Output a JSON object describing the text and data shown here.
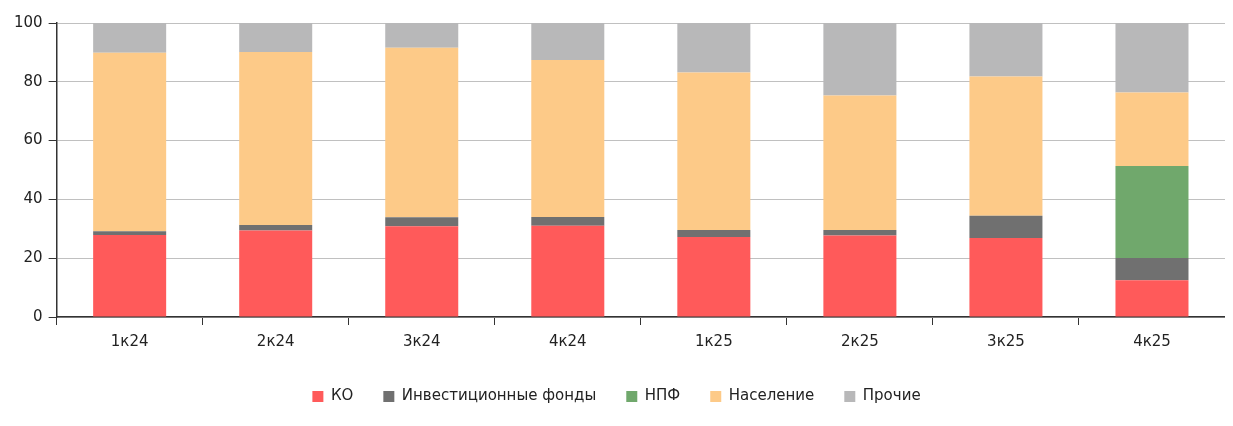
{
  "chart_data": {
    "type": "bar",
    "stacked": true,
    "categories": [
      "1к24",
      "2к24",
      "3к24",
      "4к24",
      "1к25",
      "2к25",
      "3к25",
      "4к25"
    ],
    "series": [
      {
        "name": "КО",
        "color": "#ff5a5a",
        "values": [
          27.9,
          29.4,
          30.9,
          31.0,
          27.2,
          27.7,
          26.9,
          12.5
        ]
      },
      {
        "name": "Инвестиционные фонды",
        "color": "#707070",
        "values": [
          1.3,
          1.9,
          3.0,
          3.0,
          2.4,
          1.9,
          7.5,
          7.6
        ]
      },
      {
        "name": "НПФ",
        "color": "#70a86c",
        "values": [
          null,
          null,
          null,
          null,
          null,
          null,
          null,
          31.3
        ]
      },
      {
        "name": "Население",
        "color": "#fdca88",
        "values": [
          60.7,
          58.8,
          57.7,
          53.4,
          53.6,
          45.7,
          47.4,
          25.0
        ]
      },
      {
        "name": "Прочие",
        "color": "#b8b8b9",
        "values": [
          10.1,
          9.9,
          8.4,
          12.6,
          16.8,
          24.7,
          18.2,
          23.6
        ]
      }
    ],
    "ylim": [
      0,
      100
    ],
    "yticks": [
      0,
      20,
      40,
      60,
      80,
      100
    ],
    "grid": "y",
    "legend": "bottom"
  }
}
